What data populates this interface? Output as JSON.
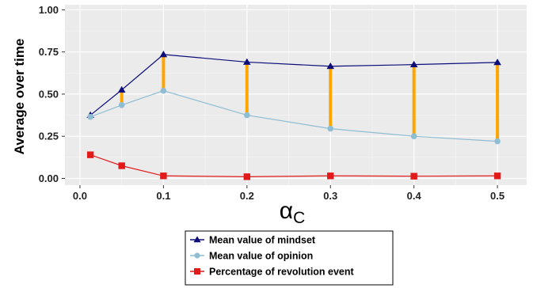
{
  "chart_data": {
    "type": "line",
    "title": "",
    "xlabel": "α",
    "xlabel_subscript": "C",
    "ylabel": "Average over time",
    "x": [
      0.0125,
      0.05,
      0.1,
      0.2,
      0.3,
      0.4,
      0.5
    ],
    "x_ticks": [
      0.0,
      0.1,
      0.2,
      0.3,
      0.4,
      0.5
    ],
    "x_tick_labels": [
      "0.0",
      "0.1",
      "0.2",
      "0.3",
      "0.4",
      "0.5"
    ],
    "y_ticks": [
      0.0,
      0.25,
      0.5,
      0.75,
      1.0
    ],
    "y_tick_labels": [
      "0.00",
      "0.25",
      "0.50",
      "0.75",
      "1.00"
    ],
    "xlim": [
      -0.018,
      0.535
    ],
    "ylim": [
      -0.04,
      1.03
    ],
    "grid": true,
    "legend_position": "bottom",
    "series": [
      {
        "name": "Mean value of mindset",
        "values": [
          0.375,
          0.525,
          0.735,
          0.69,
          0.665,
          0.675,
          0.688
        ],
        "color": "#0d0d7a",
        "marker": "triangle"
      },
      {
        "name": "Mean value of opinion",
        "values": [
          0.365,
          0.435,
          0.52,
          0.375,
          0.295,
          0.25,
          0.22
        ],
        "color": "#8fbdd3",
        "marker": "circle"
      },
      {
        "name": "Percentage of revolution event",
        "values": [
          0.14,
          0.075,
          0.015,
          0.01,
          0.015,
          0.013,
          0.015
        ],
        "color": "#e11a1a",
        "marker": "square"
      }
    ],
    "gap_bars": {
      "between": [
        "Mean value of mindset",
        "Mean value of opinion"
      ],
      "color": "#ffa500"
    }
  }
}
